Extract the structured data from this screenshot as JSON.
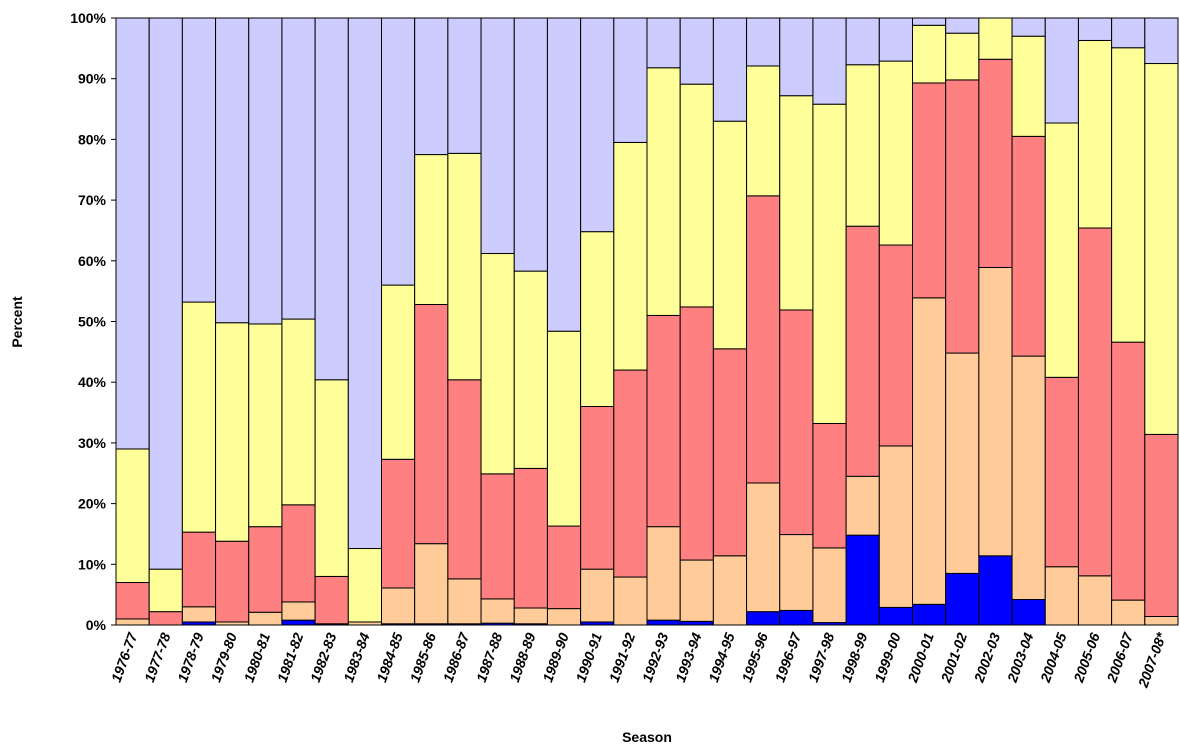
{
  "chart_data": {
    "type": "stacked_bar",
    "x_label": "Season",
    "y_label": "Percent",
    "categories": [
      "1976-77",
      "1977-78",
      "1978-79",
      "1979-80",
      "1980-81",
      "1981-82",
      "1982-83",
      "1983-84",
      "1984-85",
      "1985-86",
      "1986-87",
      "1987-88",
      "1988-89",
      "1989-90",
      "1990-91",
      "1991-92",
      "1992-93",
      "1993-94",
      "1994-95",
      "1995-96",
      "1996-97",
      "1997-98",
      "1998-99",
      "1999-00",
      "2000-01",
      "2001-02",
      "2002-03",
      "2003-04",
      "2004-05",
      "2005-06",
      "2006-07",
      "2007-08*"
    ],
    "series": [
      {
        "color": "#0000ff",
        "values": [
          0,
          0,
          0.5,
          0,
          0,
          0.8,
          0.2,
          0,
          0.2,
          0.2,
          0.2,
          0.3,
          0.2,
          0,
          0.5,
          0,
          0.8,
          0.6,
          0,
          2.2,
          2.4,
          0.4,
          14.8,
          2.9,
          3.4,
          8.5,
          11.4,
          4.2,
          0,
          0,
          0,
          0
        ]
      },
      {
        "color": "#ffcc99",
        "values": [
          1,
          0,
          2.5,
          0.5,
          2.1,
          3,
          0,
          0.5,
          5.9,
          13.2,
          7.4,
          4,
          2.6,
          2.7,
          8.7,
          7.9,
          15.4,
          10.1,
          11.4,
          21.2,
          12.5,
          12.3,
          9.7,
          26.6,
          50.5,
          36.3,
          47.5,
          40.1,
          9.6,
          8.1,
          4.1,
          1.4
        ]
      },
      {
        "color": "#ff8080",
        "values": [
          6,
          2.2,
          12.3,
          13.3,
          14.1,
          16,
          7.8,
          0,
          21.2,
          39.4,
          32.8,
          20.6,
          23,
          13.6,
          26.8,
          34.1,
          34.8,
          41.7,
          34.1,
          47.3,
          37,
          20.5,
          41.2,
          33.1,
          35.4,
          45,
          34.3,
          36.2,
          31.2,
          57.3,
          42.5,
          30
        ]
      },
      {
        "color": "#ffff99",
        "values": [
          22,
          7,
          37.9,
          36,
          33.4,
          30.6,
          32.4,
          12.1,
          28.7,
          24.7,
          37.3,
          36.3,
          32.5,
          32.1,
          28.8,
          37.5,
          40.8,
          36.7,
          37.5,
          21.4,
          35.3,
          52.6,
          26.6,
          30.3,
          9.5,
          7.7,
          6.8,
          16.5,
          41.9,
          30.9,
          48.5,
          61.1
        ]
      },
      {
        "color": "#ccccff",
        "values": [
          71,
          90.8,
          46.8,
          50.2,
          50.4,
          49.6,
          59.6,
          87.4,
          44,
          22.5,
          22.3,
          38.8,
          41.7,
          51.6,
          35.2,
          20.5,
          8.2,
          10.9,
          17,
          7.9,
          12.8,
          14.2,
          7.7,
          7.1,
          1.2,
          2.5,
          0,
          3,
          17.3,
          3.7,
          4.9,
          7.5
        ]
      }
    ],
    "ylim": [
      0,
      100
    ],
    "yticks": [
      {
        "value": 0,
        "label": "0%"
      },
      {
        "value": 10,
        "label": "10%"
      },
      {
        "value": 20,
        "label": "20%"
      },
      {
        "value": 30,
        "label": "30%"
      },
      {
        "value": 40,
        "label": "40%"
      },
      {
        "value": 50,
        "label": "50%"
      },
      {
        "value": 60,
        "label": "60%"
      },
      {
        "value": 70,
        "label": "70%"
      },
      {
        "value": 80,
        "label": "80%"
      },
      {
        "value": 90,
        "label": "90%"
      },
      {
        "value": 100,
        "label": "100%"
      }
    ]
  }
}
